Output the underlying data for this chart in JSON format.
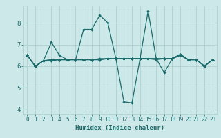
{
  "xlabel": "Humidex (Indice chaleur)",
  "background_color": "#cce8e8",
  "grid_color": "#aacccc",
  "line_color": "#1a6b6b",
  "xlim": [
    -0.5,
    23.5
  ],
  "ylim": [
    3.8,
    8.8
  ],
  "xticks": [
    0,
    1,
    2,
    3,
    4,
    5,
    6,
    7,
    8,
    9,
    10,
    11,
    12,
    13,
    14,
    15,
    16,
    17,
    18,
    19,
    20,
    21,
    22,
    23
  ],
  "yticks": [
    4,
    5,
    6,
    7,
    8
  ],
  "y_main": [
    6.5,
    6.0,
    6.25,
    7.1,
    6.5,
    6.3,
    6.3,
    7.7,
    7.7,
    8.35,
    8.0,
    6.35,
    4.35,
    4.3,
    6.35,
    8.55,
    6.35,
    5.7,
    6.35,
    6.55,
    6.3,
    6.3,
    6.0,
    6.3
  ],
  "y_flat1": [
    6.5,
    6.0,
    6.25,
    6.3,
    6.3,
    6.3,
    6.3,
    6.3,
    6.3,
    6.35,
    6.35,
    6.35,
    6.35,
    6.35,
    6.35,
    6.35,
    6.35,
    6.35,
    6.35,
    6.55,
    6.3,
    6.3,
    6.0,
    6.3
  ],
  "y_flat2": [
    6.5,
    6.0,
    6.25,
    6.25,
    6.3,
    6.3,
    6.3,
    6.3,
    6.3,
    6.3,
    6.35,
    6.35,
    6.35,
    6.35,
    6.35,
    6.35,
    6.35,
    6.35,
    6.35,
    6.5,
    6.3,
    6.3,
    6.0,
    6.3
  ],
  "y_flat3": [
    6.5,
    6.0,
    6.25,
    6.3,
    6.3,
    6.3,
    6.3,
    6.3,
    6.3,
    6.3,
    6.35,
    6.35,
    6.35,
    6.35,
    6.35,
    6.35,
    6.3,
    6.35,
    6.35,
    6.5,
    6.3,
    6.3,
    6.0,
    6.3
  ],
  "tick_fontsize": 5.5,
  "xlabel_fontsize": 6.5,
  "lw": 0.9,
  "ms": 2.2
}
